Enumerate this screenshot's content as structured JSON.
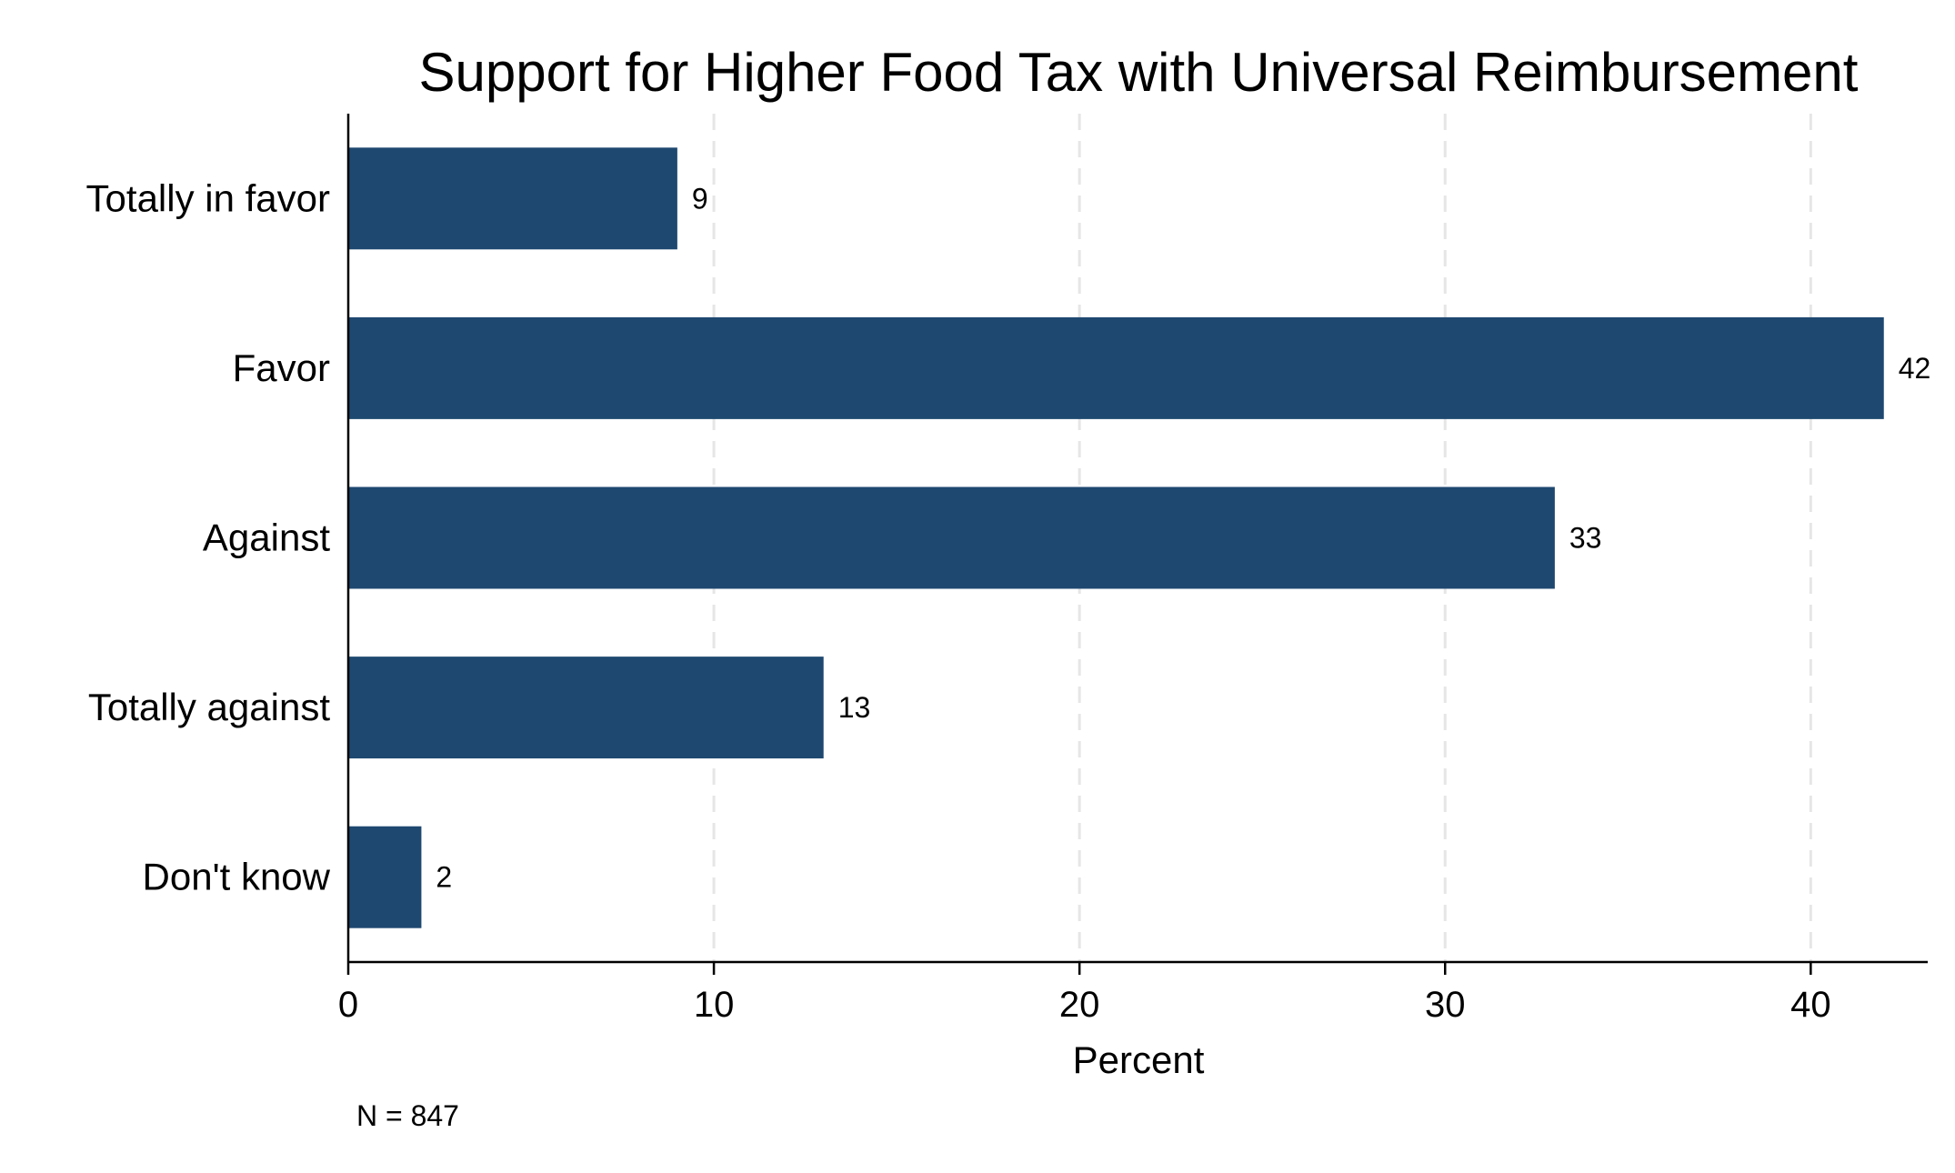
{
  "chart_data": {
    "type": "bar",
    "orientation": "horizontal",
    "title": "Support for Higher Food Tax with Universal Reimbursement",
    "categories": [
      "Totally in favor",
      "Favor",
      "Against",
      "Totally against",
      "Don't know"
    ],
    "values": [
      9,
      42,
      33,
      13,
      2
    ],
    "data_labels": [
      "9",
      "42",
      "33",
      "13",
      "2"
    ],
    "xlabel": "Percent",
    "ylabel": "",
    "xlim": [
      0,
      43.2
    ],
    "xticks": [
      0,
      10,
      20,
      30,
      40
    ],
    "xtick_labels": [
      "0",
      "10",
      "20",
      "30",
      "40"
    ],
    "grid": "vertical dashed",
    "legend": "none",
    "note": "N = 847",
    "colors": {
      "bar": "#1e4870",
      "grid": "#e6e6e6",
      "axis": "#000000",
      "text": "#000000",
      "background": "#ffffff"
    }
  }
}
